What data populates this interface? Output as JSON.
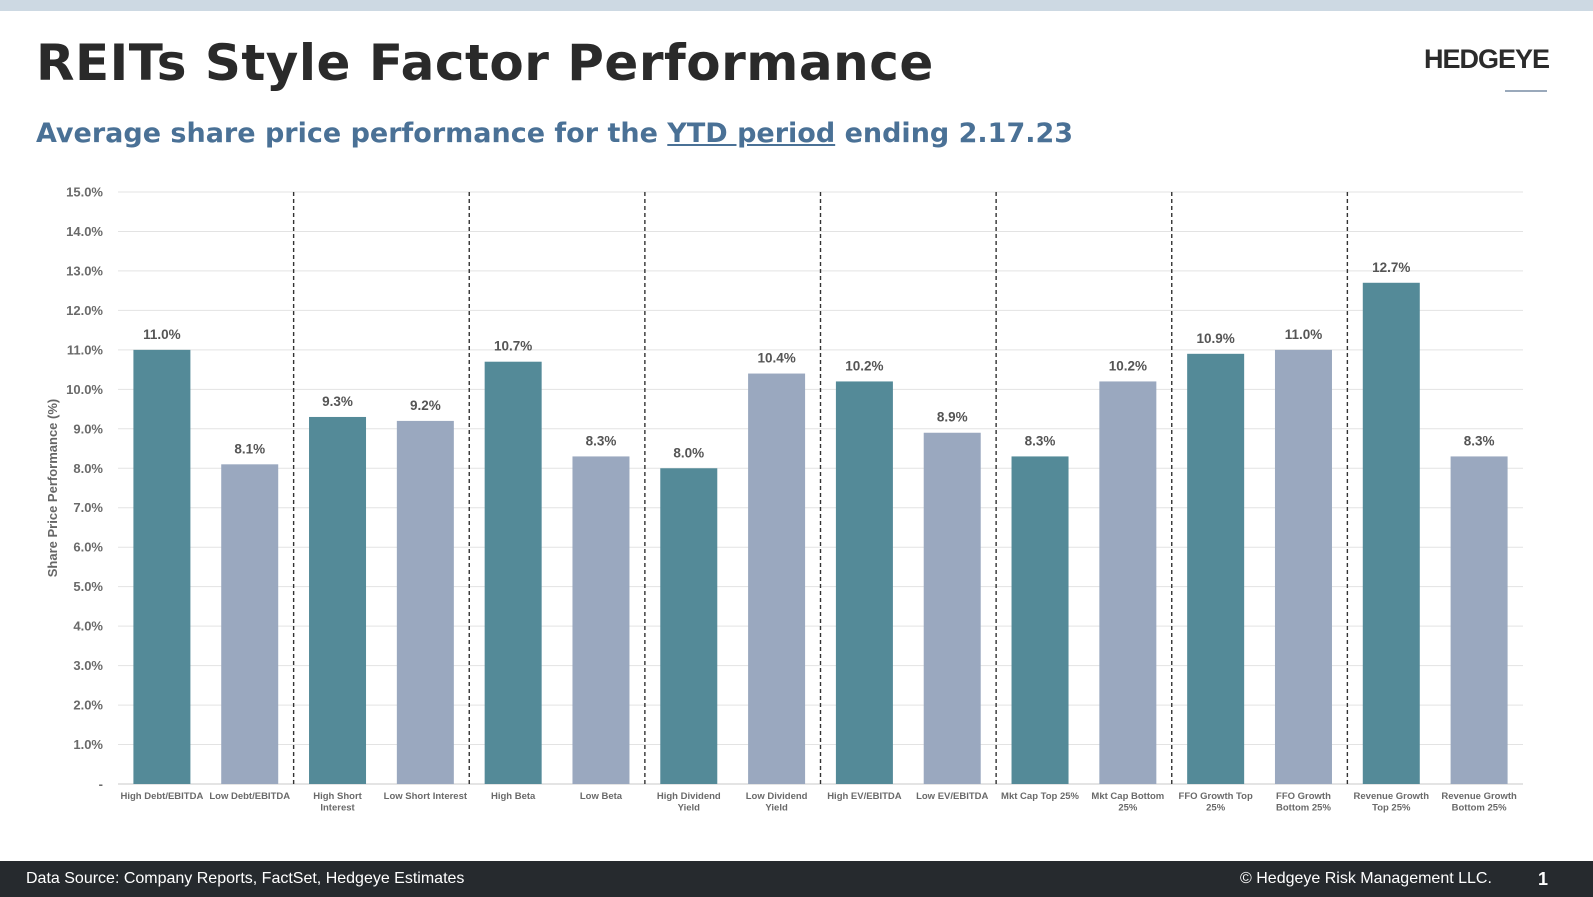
{
  "title": "REITs Style Factor Performance",
  "logo": "HEDGEYE",
  "subtitle": {
    "before": "Average share price performance for the ",
    "underlined": "YTD period",
    "after": " ending 2.17.23"
  },
  "footer": {
    "source": "Data Source: Company Reports, FactSet, Hedgeye Estimates",
    "copyright": "© Hedgeye Risk Management LLC.",
    "page_number": "1"
  },
  "colors": {
    "teal": "#548a98",
    "gray_blue": "#9aa8bf",
    "subtitle": "#4a7196"
  },
  "chart_data": {
    "type": "bar",
    "ylabel": "Share Price Performance (%)",
    "ylim": [
      0,
      15
    ],
    "y_ticks": [
      "-",
      "1.0%",
      "2.0%",
      "3.0%",
      "4.0%",
      "5.0%",
      "6.0%",
      "7.0%",
      "8.0%",
      "9.0%",
      "10.0%",
      "11.0%",
      "12.0%",
      "13.0%",
      "14.0%",
      "15.0%"
    ],
    "grid": true,
    "group_separators": "dashed vertical lines between factor pairs",
    "categories": [
      "High Debt/EBITDA",
      "Low Debt/EBITDA",
      "High Short Interest",
      "Low Short Interest",
      "High Beta",
      "Low Beta",
      "High Dividend Yield",
      "Low Dividend Yield",
      "High EV/EBITDA",
      "Low EV/EBITDA",
      "Mkt Cap Top 25%",
      "Mkt Cap Bottom 25%",
      "FFO Growth Top 25%",
      "FFO Growth Bottom 25%",
      "Revenue Growth Top 25%",
      "Revenue Growth Bottom 25%"
    ],
    "category_lines": [
      [
        "High Debt/EBITDA"
      ],
      [
        "Low Debt/EBITDA"
      ],
      [
        "High Short",
        "Interest"
      ],
      [
        "Low Short Interest"
      ],
      [
        "High Beta"
      ],
      [
        "Low Beta"
      ],
      [
        "High Dividend",
        "Yield"
      ],
      [
        "Low Dividend",
        "Yield"
      ],
      [
        "High EV/EBITDA"
      ],
      [
        "Low EV/EBITDA"
      ],
      [
        "Mkt Cap Top 25%"
      ],
      [
        "Mkt Cap Bottom",
        "25%"
      ],
      [
        "FFO Growth Top",
        "25%"
      ],
      [
        "FFO Growth",
        "Bottom 25%"
      ],
      [
        "Revenue Growth",
        "Top 25%"
      ],
      [
        "Revenue Growth",
        "Bottom 25%"
      ]
    ],
    "values": [
      11.0,
      8.1,
      9.3,
      9.2,
      10.7,
      8.3,
      8.0,
      10.4,
      10.2,
      8.9,
      8.3,
      10.2,
      10.9,
      11.0,
      12.7,
      8.3
    ],
    "data_labels": [
      "11.0%",
      "8.1%",
      "9.3%",
      "9.2%",
      "10.7%",
      "8.3%",
      "8.0%",
      "10.4%",
      "10.2%",
      "8.9%",
      "8.3%",
      "10.2%",
      "10.9%",
      "11.0%",
      "12.7%",
      "8.3%"
    ]
  }
}
